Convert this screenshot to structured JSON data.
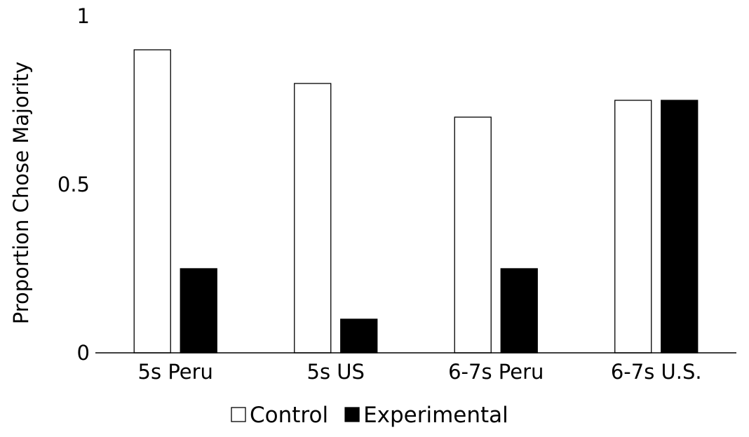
{
  "chart_data": {
    "type": "bar",
    "categories": [
      "5s Peru",
      "5s US",
      "6-7s Peru",
      "6-7s U.S."
    ],
    "series": [
      {
        "name": "Control",
        "values": [
          0.9,
          0.8,
          0.7,
          0.75
        ],
        "color": "#ffffff"
      },
      {
        "name": "Experimental",
        "values": [
          0.25,
          0.1,
          0.25,
          0.75
        ],
        "color": "#000000"
      }
    ],
    "ylabel": "Proportion Chose Majority",
    "yticks": [
      "0",
      "0.5",
      "1"
    ],
    "ylim": [
      0,
      1
    ],
    "grid": false,
    "legend_position": "bottom-center"
  }
}
